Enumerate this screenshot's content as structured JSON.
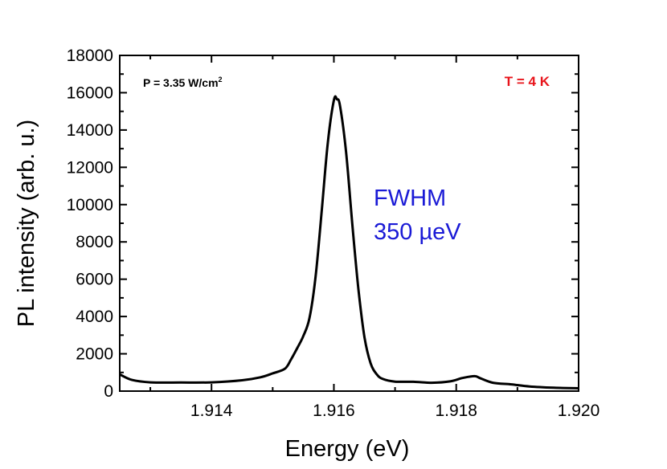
{
  "chart_data": {
    "type": "line",
    "xlabel": "Energy (eV)",
    "ylabel": "PL intensity (arb. u.)",
    "xlim": [
      1.9125,
      1.92
    ],
    "ylim": [
      0,
      18000
    ],
    "x_ticks": [
      1.914,
      1.916,
      1.918,
      1.92
    ],
    "x_tick_labels": [
      "1.914",
      "1.916",
      "1.918",
      "1.920"
    ],
    "y_ticks": [
      0,
      2000,
      4000,
      6000,
      8000,
      10000,
      12000,
      14000,
      16000,
      18000
    ],
    "y_tick_labels": [
      "0",
      "2000",
      "4000",
      "6000",
      "8000",
      "10000",
      "12000",
      "14000",
      "16000",
      "18000"
    ],
    "grid": false,
    "annotations": {
      "power": {
        "text": "P = 3.35 W/cm",
        "superscript": "2"
      },
      "temperature": {
        "text": "T = 4 K",
        "color": "#e8141b"
      },
      "fwhm_line1": {
        "text": "FWHM",
        "color": "#1a1ad6"
      },
      "fwhm_line2": {
        "text": "350 µeV",
        "color": "#1a1ad6"
      }
    },
    "series": [
      {
        "color": "#000000",
        "x": [
          1.9125,
          1.9127,
          1.913,
          1.9135,
          1.914,
          1.9145,
          1.9148,
          1.915,
          1.9152,
          1.9153,
          1.9154,
          1.9155,
          1.9156,
          1.9157,
          1.9158,
          1.9159,
          1.916,
          1.91605,
          1.9161,
          1.9162,
          1.9163,
          1.9164,
          1.9165,
          1.9166,
          1.9167,
          1.9168,
          1.917,
          1.9173,
          1.9176,
          1.9179,
          1.9181,
          1.9183,
          1.9184,
          1.9186,
          1.9189,
          1.9192,
          1.9196,
          1.92
        ],
        "y": [
          900,
          600,
          470,
          460,
          470,
          580,
          740,
          950,
          1200,
          1700,
          2300,
          2950,
          3900,
          6100,
          9600,
          13300,
          15600,
          15650,
          15300,
          12800,
          9000,
          5500,
          2900,
          1500,
          900,
          650,
          510,
          500,
          450,
          520,
          700,
          800,
          680,
          450,
          360,
          250,
          180,
          150
        ]
      }
    ]
  }
}
